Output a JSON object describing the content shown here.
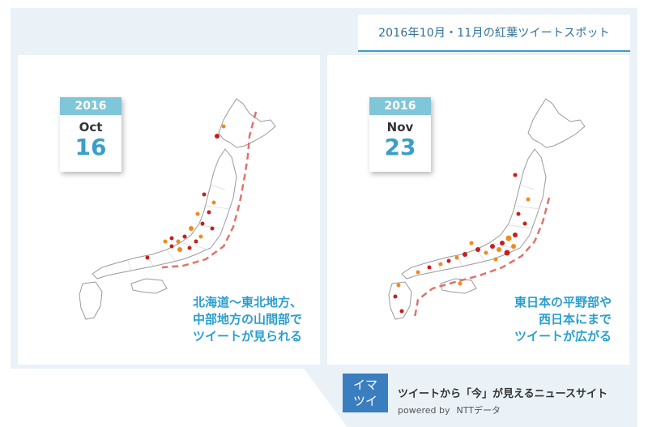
{
  "header": {
    "title": "2016年10月・11月の紅葉ツイートスポット"
  },
  "panels": [
    {
      "calendar": {
        "year": "2016",
        "month": "Oct",
        "day": "16"
      },
      "caption_lines": [
        "北海道～東北地方、",
        "中部地方の山間部で",
        "ツイートが見られる"
      ]
    },
    {
      "calendar": {
        "year": "2016",
        "month": "Nov",
        "day": "23"
      },
      "caption_lines": [
        "東日本の平野部や",
        "西日本にまで",
        "ツイートが広がる"
      ]
    }
  ],
  "footer": {
    "logo_lines": [
      "イマ",
      "ツイ"
    ],
    "tagline": "ツイートから「今」が見えるニュースサイト",
    "powered_by": "powered by",
    "company": "NTTデータ"
  },
  "colors": {
    "accent": "#3a9fc8",
    "caption": "#2a9fcf",
    "dot_red": "#c81e1e",
    "dot_orange": "#f08a1c",
    "front_line": "#e0736c"
  }
}
